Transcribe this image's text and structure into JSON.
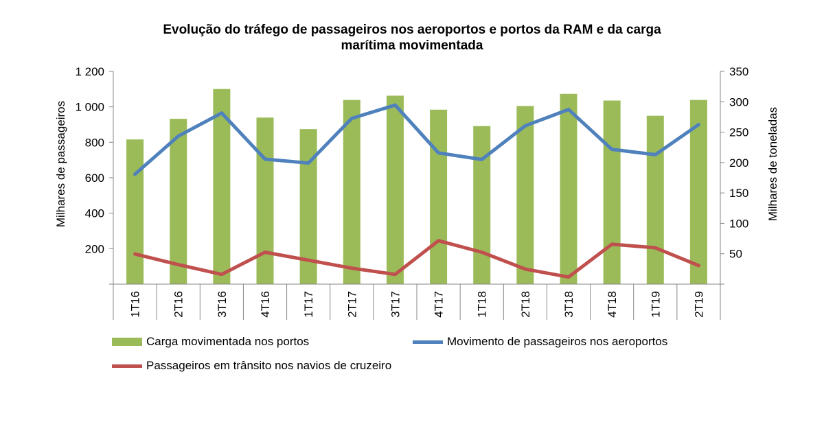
{
  "chart_data": {
    "type": "bar+line",
    "title_lines": [
      "Evolução do tráfego de passageiros nos aeroportos e portos da RAM e da carga",
      "marítima movimentada"
    ],
    "categories": [
      "1T16",
      "2T16",
      "3T16",
      "4T16",
      "1T17",
      "2T17",
      "3T17",
      "4T17",
      "1T18",
      "2T18",
      "3T18",
      "4T18",
      "1T19",
      "2T19"
    ],
    "ylabel_left": "Milhares de passageiros",
    "ylabel_right": "Milhares de toneladas",
    "y_left": {
      "min": 0,
      "max": 1200,
      "ticks": [
        200,
        400,
        600,
        800,
        1000,
        1200
      ],
      "tick_labels": [
        "200",
        "400",
        "600",
        "800",
        "1 000",
        "1 200"
      ]
    },
    "y_right": {
      "min": 0,
      "max": 350,
      "ticks": [
        50,
        100,
        150,
        200,
        250,
        300,
        350
      ],
      "tick_labels": [
        "50",
        "100",
        "150",
        "200",
        "250",
        "300",
        "350"
      ]
    },
    "grid": false,
    "legend_position": "bottom",
    "series": [
      {
        "name": "Carga movimentada nos portos",
        "type": "bar",
        "axis": "right",
        "color": "#9BBB59",
        "values": [
          238,
          272,
          321,
          274,
          255,
          303,
          310,
          287,
          260,
          293,
          313,
          302,
          277,
          303
        ]
      },
      {
        "name": "Movimento de passageiros nos aeroportos",
        "type": "line",
        "axis": "left",
        "color": "#4F81BD",
        "values": [
          620,
          835,
          965,
          705,
          683,
          935,
          1010,
          740,
          703,
          893,
          985,
          760,
          730,
          900
        ]
      },
      {
        "name": "Passageiros em trânsito nos navios de cruzeiro",
        "type": "line",
        "axis": "left",
        "color": "#C0504D",
        "values": [
          170,
          110,
          55,
          180,
          135,
          90,
          55,
          245,
          180,
          85,
          40,
          225,
          205,
          105
        ]
      }
    ]
  }
}
